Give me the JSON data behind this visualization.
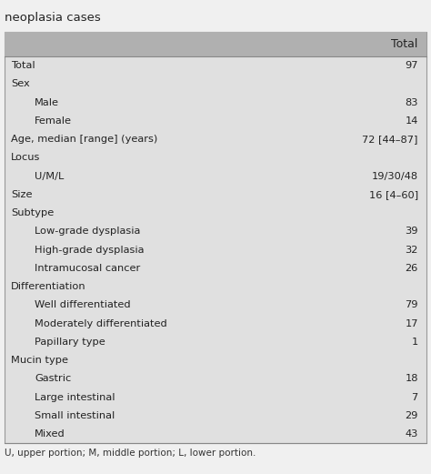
{
  "title": "neoplasia cases",
  "col_header": "Total",
  "header_bg": "#b0b0b0",
  "table_bg": "#e0e0e0",
  "fig_bg": "#f0f0f0",
  "footer_text": "U, upper portion; M, middle portion; L, lower portion.",
  "rows": [
    {
      "label": "Total",
      "indent": 0,
      "value": "97"
    },
    {
      "label": "Sex",
      "indent": 0,
      "value": ""
    },
    {
      "label": "Male",
      "indent": 1,
      "value": "83"
    },
    {
      "label": "Female",
      "indent": 1,
      "value": "14"
    },
    {
      "label": "Age, median [range] (years)",
      "indent": 0,
      "value": "72 [44–87]"
    },
    {
      "label": "Locus",
      "indent": 0,
      "value": ""
    },
    {
      "label": "U/M/L",
      "indent": 1,
      "value": "19/30/48"
    },
    {
      "label": "Size",
      "indent": 0,
      "value": "16 [4–60]"
    },
    {
      "label": "Subtype",
      "indent": 0,
      "value": ""
    },
    {
      "label": "Low-grade dysplasia",
      "indent": 1,
      "value": "39"
    },
    {
      "label": "High-grade dysplasia",
      "indent": 1,
      "value": "32"
    },
    {
      "label": "Intramucosal cancer",
      "indent": 1,
      "value": "26"
    },
    {
      "label": "Differentiation",
      "indent": 0,
      "value": ""
    },
    {
      "label": "Well differentiated",
      "indent": 1,
      "value": "79"
    },
    {
      "label": "Moderately differentiated",
      "indent": 1,
      "value": "17"
    },
    {
      "label": "Papillary type",
      "indent": 1,
      "value": "1"
    },
    {
      "label": "Mucin type",
      "indent": 0,
      "value": ""
    },
    {
      "label": "Gastric",
      "indent": 1,
      "value": "18"
    },
    {
      "label": "Large intestinal",
      "indent": 1,
      "value": "7"
    },
    {
      "label": "Small intestinal",
      "indent": 1,
      "value": "29"
    },
    {
      "label": "Mixed",
      "indent": 1,
      "value": "43"
    }
  ]
}
